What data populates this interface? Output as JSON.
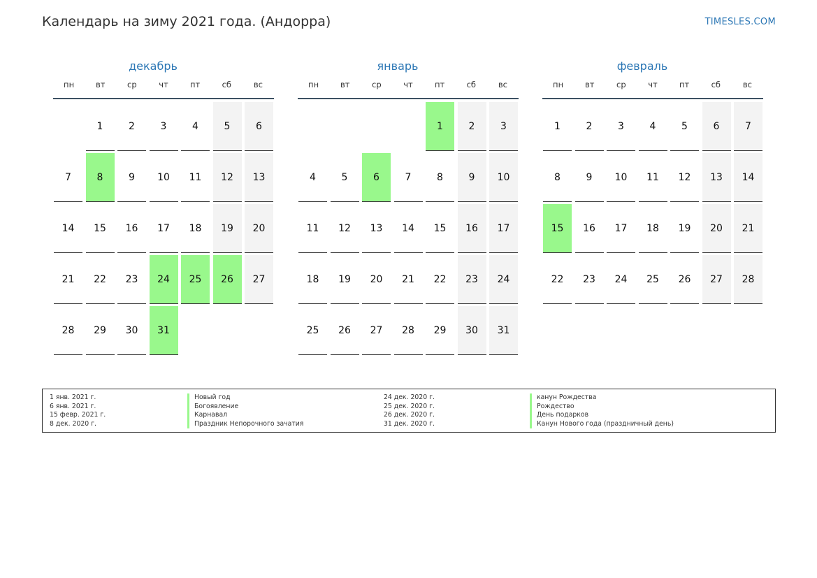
{
  "header": {
    "title": "Календарь на зиму 2021 года. (Андорра)",
    "site": "TIMESLES.COM"
  },
  "colors": {
    "accent": "#2c77b5",
    "holiday": "#99f88c",
    "weekend": "#f3f3f3"
  },
  "weekdays": [
    "пн",
    "вт",
    "ср",
    "чт",
    "пт",
    "сб",
    "вс"
  ],
  "months": [
    {
      "name": "декабрь",
      "first_weekday": 1,
      "days_in_month": 31,
      "holidays": [
        8,
        24,
        25,
        26,
        31
      ],
      "days": [
        "1",
        "2",
        "3",
        "4",
        "5",
        "6",
        "7",
        "8",
        "9",
        "10",
        "11",
        "12",
        "13",
        "14",
        "15",
        "16",
        "17",
        "18",
        "19",
        "20",
        "21",
        "22",
        "23",
        "24",
        "25",
        "26",
        "27",
        "28",
        "29",
        "30",
        "31"
      ]
    },
    {
      "name": "январь",
      "first_weekday": 4,
      "days_in_month": 31,
      "holidays": [
        1,
        6
      ],
      "days": [
        "1",
        "2",
        "3",
        "4",
        "5",
        "6",
        "7",
        "8",
        "9",
        "10",
        "11",
        "12",
        "13",
        "14",
        "15",
        "16",
        "17",
        "18",
        "19",
        "20",
        "21",
        "22",
        "23",
        "24",
        "25",
        "26",
        "27",
        "28",
        "29",
        "30",
        "31"
      ]
    },
    {
      "name": "февраль",
      "first_weekday": 0,
      "days_in_month": 28,
      "holidays": [
        15
      ],
      "days": [
        "1",
        "2",
        "3",
        "4",
        "5",
        "6",
        "7",
        "8",
        "9",
        "10",
        "11",
        "12",
        "13",
        "14",
        "15",
        "16",
        "17",
        "18",
        "19",
        "20",
        "21",
        "22",
        "23",
        "24",
        "25",
        "26",
        "27",
        "28"
      ]
    }
  ],
  "legend": {
    "left": [
      {
        "date": "1 янв. 2021 г.",
        "name": "Новый год"
      },
      {
        "date": "6 янв. 2021 г.",
        "name": "Богоявление"
      },
      {
        "date": "15 февр. 2021 г.",
        "name": "Карнавал"
      },
      {
        "date": "8 дек. 2020 г.",
        "name": "Праздник Непорочного зачатия"
      }
    ],
    "right": [
      {
        "date": "24 дек. 2020 г.",
        "name": "канун Рождества"
      },
      {
        "date": "25 дек. 2020 г.",
        "name": "Рождество"
      },
      {
        "date": "26 дек. 2020 г.",
        "name": "День подарков"
      },
      {
        "date": "31 дек. 2020 г.",
        "name": "Канун Нового года (праздничный день)"
      }
    ]
  }
}
